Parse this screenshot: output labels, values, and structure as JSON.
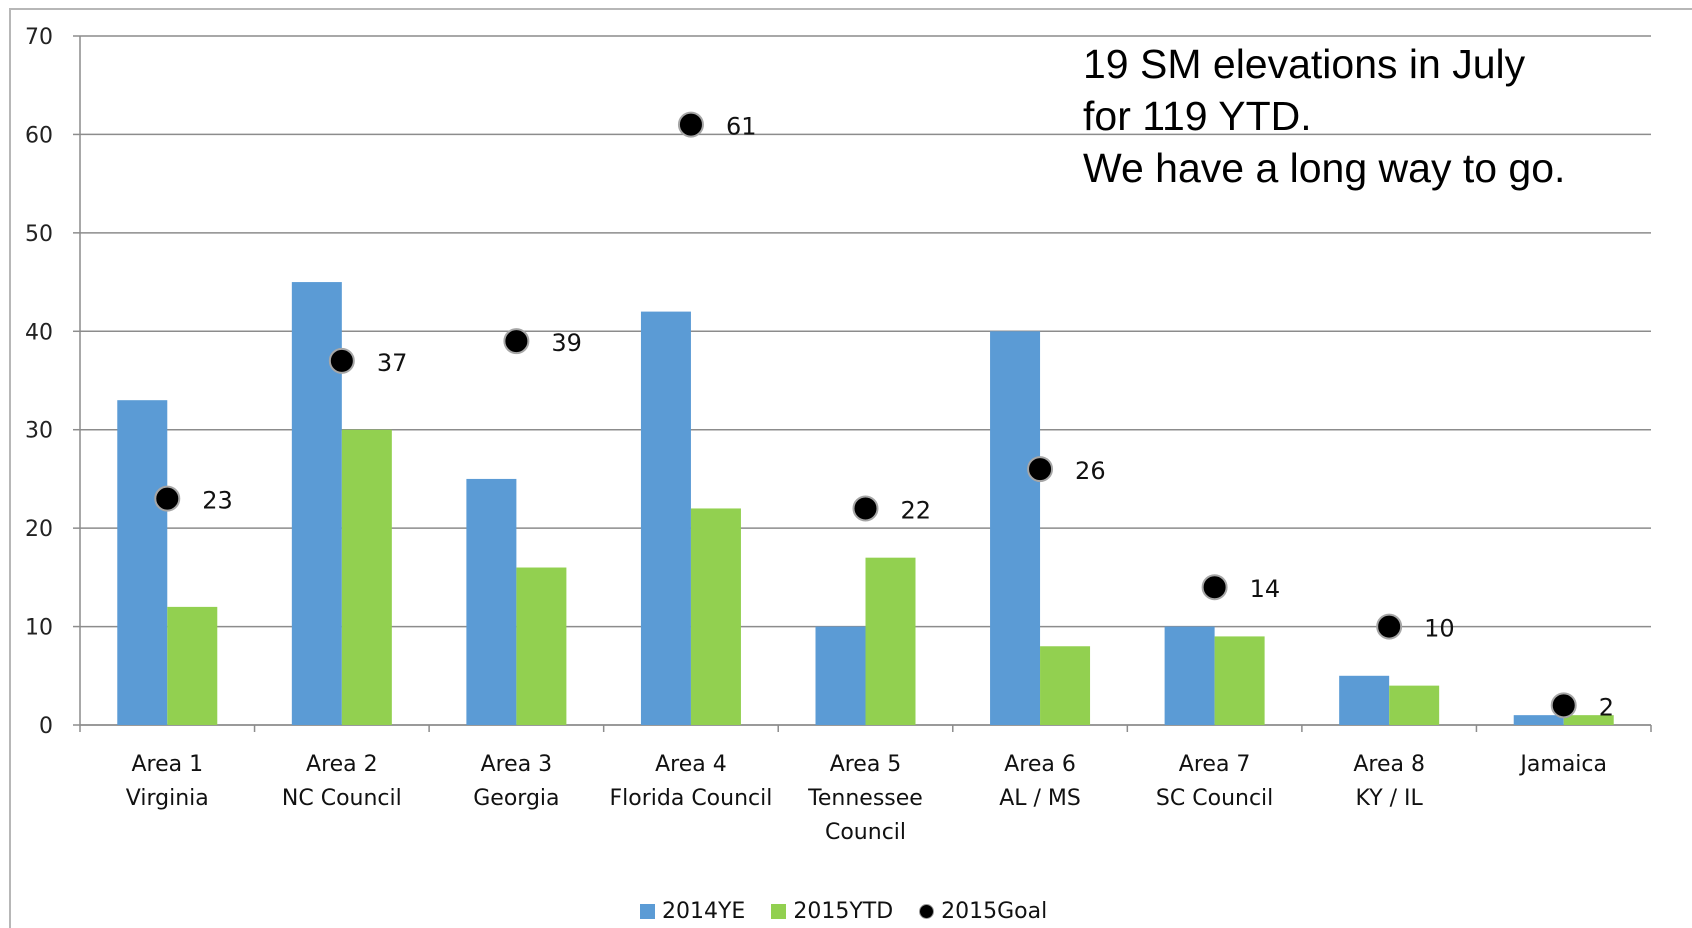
{
  "chart_data": {
    "type": "bar",
    "categories": [
      [
        "Area 1",
        "Virginia"
      ],
      [
        "Area 2",
        "NC Council"
      ],
      [
        "Area 3",
        "Georgia"
      ],
      [
        "Area 4",
        "Florida Council"
      ],
      [
        "Area 5",
        "Tennessee",
        "Council"
      ],
      [
        "Area 6",
        "AL / MS"
      ],
      [
        "Area 7",
        "SC Council"
      ],
      [
        "Area 8",
        "KY / IL"
      ],
      [
        "Jamaica"
      ]
    ],
    "series": [
      {
        "name": "2014YE",
        "type": "bar",
        "color": "#5b9bd5",
        "values": [
          33,
          45,
          25,
          42,
          10,
          40,
          10,
          5,
          1
        ]
      },
      {
        "name": "2015YTD",
        "type": "bar",
        "color": "#92d050",
        "values": [
          12,
          30,
          16,
          22,
          17,
          8,
          9,
          4,
          1
        ]
      },
      {
        "name": "2015Goal",
        "type": "scatter",
        "color": "#000000",
        "values": [
          23,
          37,
          39,
          61,
          22,
          26,
          14,
          10,
          2
        ]
      }
    ],
    "ylim": [
      0,
      70
    ],
    "yticks": [
      0,
      10,
      20,
      30,
      40,
      50,
      60,
      70
    ],
    "grid": true,
    "legend": "bottom-center",
    "annotation": "19 SM elevations in July\nfor 119 YTD.\nWe have a long way to go."
  }
}
